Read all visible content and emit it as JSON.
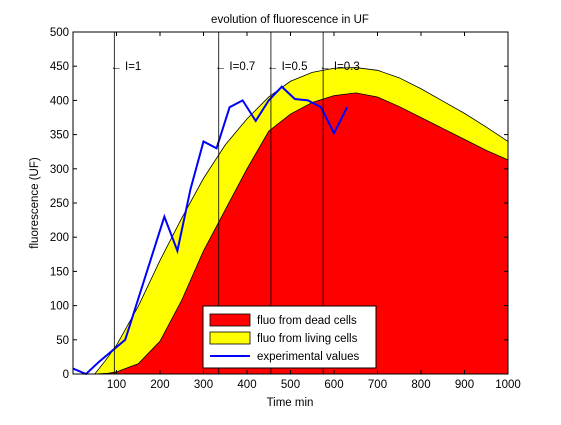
{
  "chart_data": {
    "type": "area",
    "title": "evolution of fluorescence in UF",
    "xlabel": "Time min",
    "ylabel": "fluorescence (UF)",
    "xlim": [
      0,
      1000
    ],
    "ylim": [
      0,
      500
    ],
    "xticks": [
      100,
      200,
      300,
      400,
      500,
      600,
      700,
      800,
      900,
      1000
    ],
    "yticks": [
      0,
      50,
      100,
      150,
      200,
      250,
      300,
      350,
      400,
      450,
      500
    ],
    "grid": false,
    "legend_position": "bottom-center",
    "series": [
      {
        "name": "fluo from dead cells",
        "kind": "area",
        "color": "#ff0000",
        "x": [
          0,
          50,
          80,
          100,
          150,
          200,
          250,
          300,
          350,
          400,
          450,
          500,
          550,
          600,
          650,
          700,
          750,
          800,
          850,
          900,
          950,
          1000
        ],
        "y": [
          0,
          0,
          1,
          3,
          15,
          48,
          108,
          180,
          240,
          300,
          355,
          380,
          397,
          407,
          411,
          405,
          391,
          375,
          359,
          343,
          327,
          313
        ]
      },
      {
        "name": "fluo from living cells",
        "kind": "area",
        "color": "#ffff00",
        "x": [
          0,
          50,
          75,
          100,
          150,
          200,
          250,
          300,
          350,
          400,
          450,
          500,
          550,
          600,
          650,
          700,
          750,
          800,
          850,
          900,
          950,
          1000
        ],
        "y": [
          0,
          0,
          20,
          42,
          99,
          166,
          228,
          286,
          335,
          373,
          405,
          428,
          441,
          447,
          448,
          444,
          433,
          417,
          399,
          381,
          361,
          340
        ]
      },
      {
        "name": "experimental values",
        "kind": "line",
        "color": "#0000ff",
        "x": [
          0,
          30,
          60,
          120,
          150,
          210,
          240,
          270,
          300,
          330,
          360,
          390,
          420,
          450,
          480,
          510,
          540,
          570,
          600,
          630
        ],
        "y": [
          8,
          0,
          18,
          50,
          110,
          230,
          180,
          270,
          340,
          330,
          390,
          400,
          370,
          400,
          420,
          402,
          400,
          390,
          352,
          390
        ]
      }
    ],
    "annotations": [
      {
        "x": 95,
        "label": "← I=1"
      },
      {
        "x": 335,
        "label": "← I=0.7"
      },
      {
        "x": 455,
        "label": "← I=0.5"
      },
      {
        "x": 575,
        "label": "← I=0.3"
      }
    ]
  }
}
